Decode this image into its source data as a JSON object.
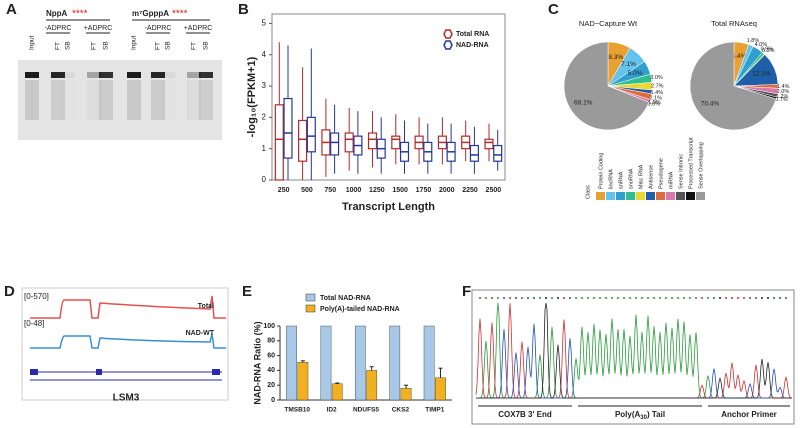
{
  "panel_labels": [
    "A",
    "B",
    "C",
    "D",
    "E",
    "F"
  ],
  "gel": {
    "left_title": "NppA",
    "right_title": "m⁷GpppA",
    "stars": "****",
    "minus": "-ADPRC",
    "plus": "+ADPRC",
    "lanes": [
      "Input",
      "FT",
      "SB",
      "FT",
      "SB"
    ]
  },
  "tracks": {
    "total_range": "[0-570]",
    "total_label": "Total",
    "nad_range": "[0-48]",
    "nad_label": "NAD-WT",
    "gene": "LSM3"
  },
  "chromatogram": {
    "segments": [
      {
        "label": "COX7B 3' End"
      },
      {
        "label_pre": "Poly(A",
        "label_sub": "30",
        "label_post": ") Tail"
      },
      {
        "label": "Anchor Primer"
      }
    ]
  },
  "chart_data": [
    {
      "type": "box",
      "ylabel": "-log₁₀(FPKM+1)",
      "xlabel": "Transcript Length",
      "categories": [
        "250",
        "500",
        "750",
        "1000",
        "1250",
        "1500",
        "1750",
        "2000",
        "2250",
        "2500"
      ],
      "ylim": [
        0,
        5.3
      ],
      "yticks": [
        0,
        1,
        2,
        3,
        4,
        5
      ],
      "legend": "upper right",
      "series": [
        {
          "name": "Total RNA",
          "color": "#b22a2a",
          "whisker_low": [
            0,
            0,
            0.1,
            0.3,
            0.4,
            0.5,
            0.5,
            0.5,
            0.6,
            0.6
          ],
          "q1": [
            0,
            0.6,
            0.8,
            0.9,
            1.0,
            1.0,
            1.0,
            1.0,
            1.0,
            1.0
          ],
          "median": [
            1.3,
            1.3,
            1.2,
            1.3,
            1.3,
            1.3,
            1.2,
            1.2,
            1.2,
            1.2
          ],
          "q3": [
            2.4,
            1.9,
            1.6,
            1.5,
            1.5,
            1.4,
            1.4,
            1.4,
            1.4,
            1.3
          ],
          "whisker_high": [
            4.4,
            3.6,
            2.6,
            2.3,
            2.2,
            2.1,
            2.0,
            2.0,
            1.9,
            1.8
          ]
        },
        {
          "name": "NAD-RNA",
          "color": "#23389c",
          "whisker_low": [
            0,
            0,
            0.2,
            0.2,
            0.2,
            0.2,
            0.2,
            0.2,
            0.2,
            0.3
          ],
          "q1": [
            0.7,
            0.9,
            0.8,
            0.8,
            0.7,
            0.6,
            0.6,
            0.6,
            0.6,
            0.6
          ],
          "median": [
            1.5,
            1.4,
            1.2,
            1.1,
            1.0,
            0.9,
            0.9,
            0.9,
            0.8,
            0.8
          ],
          "q3": [
            2.6,
            2.0,
            1.5,
            1.4,
            1.3,
            1.2,
            1.2,
            1.2,
            1.1,
            1.1
          ],
          "whisker_high": [
            4.3,
            4.2,
            2.4,
            2.2,
            2.0,
            1.9,
            1.8,
            1.8,
            1.7,
            1.6
          ]
        }
      ]
    },
    {
      "type": "pie",
      "title": "NAD−Capture Wt",
      "legend_title": "Class",
      "categories": [
        "Protein Coding",
        "lincRNA",
        "snRNA",
        "snoRNA",
        "Misc RNA",
        "Antisense",
        "Pseudogene",
        "miRNA",
        "Sense Intronic",
        "Processed Transcript",
        "Sense Overlapping"
      ],
      "colors": [
        "#e8a030",
        "#63c3ec",
        "#2f9fd0",
        "#2fbf8f",
        "#e8d830",
        "#1f5fa8",
        "#e06a3a",
        "#d878b0",
        "#555555",
        "#111111",
        "#9a9a9a"
      ],
      "values": [
        8.3,
        7.1,
        5.0,
        3.0,
        2.7,
        1.4,
        2.1,
        1.0,
        0.0,
        null,
        68.1
      ],
      "value_labels": [
        "8.3%",
        "7.1%",
        "5.0%",
        "3.0%",
        "2.7%",
        "1.4%",
        "2.1%",
        "1.0%",
        "0.0%",
        null,
        "68.1%"
      ]
    },
    {
      "type": "pie",
      "title": "Total RNAseq",
      "values": [
        5.4,
        1.8,
        4.0,
        0.9,
        0.3,
        12.1,
        1.4,
        2.0,
        1.2,
        0.7,
        70.4
      ],
      "value_labels": [
        "5.4%",
        "1.8%",
        "4.0%",
        "0.9%",
        "0.3%",
        "12.1%",
        "1.4%",
        "2.0%",
        "1.2%",
        "0.7%",
        "70.4%"
      ]
    },
    {
      "type": "bar",
      "ylabel": "NAD-RNA Ratio (%)",
      "categories": [
        "TMSB10",
        "ID2",
        "NDUFS5",
        "CKS2",
        "TIMP1"
      ],
      "ylim": [
        0,
        100
      ],
      "yticks": [
        0,
        20,
        40,
        60,
        80,
        100
      ],
      "legend": "top",
      "series": [
        {
          "name": "Total NAD-RNA",
          "color": "#a8c8e8",
          "values": [
            100,
            100,
            100,
            100,
            100
          ]
        },
        {
          "name": "Poly(A)-tailed NAD-RNA",
          "color": "#f0b020",
          "values": [
            51,
            22,
            40,
            16,
            30
          ],
          "errors": [
            2,
            1,
            5,
            4,
            13
          ]
        }
      ]
    }
  ]
}
